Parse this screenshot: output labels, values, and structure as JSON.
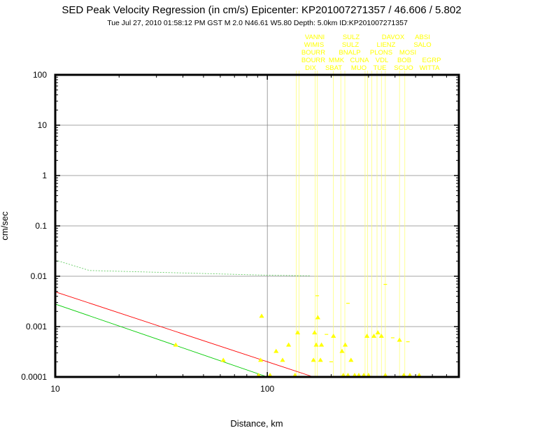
{
  "chart_data": {
    "type": "scatter",
    "title": "SED Peak Velocity Regression (in cm/s) Epicenter: KP201007271357 / 46.606 / 5.802",
    "subtitle": "Tue Jul 27, 2010 01:58:12 PM GST   M 2.0   N46.61 W5.80   Depth: 5.0km   ID:KP201007271357",
    "xlabel": "Distance, km",
    "ylabel": "cm/sec",
    "x_scale": "log",
    "y_scale": "log",
    "xlim": [
      10,
      800
    ],
    "ylim": [
      0.0001,
      100
    ],
    "grid": true,
    "x_ticks": [
      {
        "value": 10,
        "label": "10"
      },
      {
        "value": 100,
        "label": "100"
      }
    ],
    "y_ticks": [
      {
        "value": 100,
        "label": "100"
      },
      {
        "value": 10,
        "label": "10"
      },
      {
        "value": 1,
        "label": "1"
      },
      {
        "value": 0.1,
        "label": "0.1"
      },
      {
        "value": 0.01,
        "label": "0.01"
      },
      {
        "value": 0.001,
        "label": "0.001"
      },
      {
        "value": 0.0001,
        "label": "0.0001"
      }
    ],
    "colors": {
      "points": "#ffff00",
      "red_line": "#ff0000",
      "green_line": "#00cc00",
      "dotted_line": "#66cc66",
      "grid": "#888888"
    },
    "regression_lines": [
      {
        "color": "#ff0000",
        "style": "solid",
        "points": [
          [
            10,
            0.0049
          ],
          [
            165,
            0.0001
          ]
        ]
      },
      {
        "color": "#00cc00",
        "style": "solid",
        "points": [
          [
            10,
            0.0028
          ],
          [
            100,
            0.0001
          ]
        ]
      },
      {
        "color": "#66cc66",
        "style": "dotted",
        "points": [
          [
            10,
            0.021
          ],
          [
            14.5,
            0.013
          ],
          [
            30,
            0.012
          ],
          [
            100,
            0.0105
          ],
          [
            160,
            0.0102
          ]
        ]
      }
    ],
    "points": [
      {
        "x": 37,
        "y": 0.0004
      },
      {
        "x": 62,
        "y": 0.0002
      },
      {
        "x": 91,
        "y": 0.0001
      },
      {
        "x": 93,
        "y": 0.0002
      },
      {
        "x": 94,
        "y": 0.0015
      },
      {
        "x": 103,
        "y": 0.0001
      },
      {
        "x": 110,
        "y": 0.0003
      },
      {
        "x": 118,
        "y": 0.0002
      },
      {
        "x": 126,
        "y": 0.0004
      },
      {
        "x": 135,
        "y": 0.0001
      },
      {
        "x": 139,
        "y": 0.0007
      },
      {
        "x": 165,
        "y": 0.0002
      },
      {
        "x": 167,
        "y": 0.0007
      },
      {
        "x": 170,
        "y": 0.0004
      },
      {
        "x": 173,
        "y": 0.0014
      },
      {
        "x": 178,
        "y": 0.0002
      },
      {
        "x": 180,
        "y": 0.0004
      },
      {
        "x": 205,
        "y": 0.0006
      },
      {
        "x": 225,
        "y": 0.0003
      },
      {
        "x": 228,
        "y": 0.0001
      },
      {
        "x": 233,
        "y": 0.0004
      },
      {
        "x": 240,
        "y": 0.0001
      },
      {
        "x": 248,
        "y": 0.0002
      },
      {
        "x": 258,
        "y": 0.0001
      },
      {
        "x": 270,
        "y": 0.0001
      },
      {
        "x": 285,
        "y": 0.0001
      },
      {
        "x": 295,
        "y": 0.0006
      },
      {
        "x": 300,
        "y": 0.0001
      },
      {
        "x": 318,
        "y": 0.0006
      },
      {
        "x": 332,
        "y": 0.0007
      },
      {
        "x": 345,
        "y": 0.0006
      },
      {
        "x": 360,
        "y": 0.0001
      },
      {
        "x": 420,
        "y": 0.0005
      },
      {
        "x": 440,
        "y": 0.0001
      },
      {
        "x": 470,
        "y": 0.0001
      },
      {
        "x": 520,
        "y": 0.0001
      }
    ],
    "minor_marks": [
      {
        "x": 172,
        "y": 0.0041
      },
      {
        "x": 240,
        "y": 0.0029
      },
      {
        "x": 360,
        "y": 0.0069
      },
      {
        "x": 190,
        "y": 0.0007
      },
      {
        "x": 390,
        "y": 0.0006
      },
      {
        "x": 460,
        "y": 0.0005
      },
      {
        "x": 200,
        "y": 0.0002
      },
      {
        "x": 520,
        "y": 0.0001
      }
    ],
    "station_lines_x": [
      137,
      141,
      168,
      172,
      205,
      222,
      232,
      289,
      297,
      311,
      329,
      345,
      360,
      420,
      445
    ],
    "station_labels": [
      {
        "text": "VANNI",
        "x": 450,
        "row": 0
      },
      {
        "text": "SULZ",
        "x": 502,
        "row": 0
      },
      {
        "text": "DAVOX",
        "x": 562,
        "row": 0
      },
      {
        "text": "ABSI",
        "x": 604,
        "row": 0
      },
      {
        "text": "WIMIS",
        "x": 449,
        "row": 1
      },
      {
        "text": "SULZ",
        "x": 501,
        "row": 1
      },
      {
        "text": "LIENZ",
        "x": 552,
        "row": 1
      },
      {
        "text": "SALO",
        "x": 604,
        "row": 1
      },
      {
        "text": "BOURR",
        "x": 448,
        "row": 2
      },
      {
        "text": "BNALP",
        "x": 500,
        "row": 2
      },
      {
        "text": "PLONS",
        "x": 545,
        "row": 2
      },
      {
        "text": "MOSI",
        "x": 583,
        "row": 2
      },
      {
        "text": "BOURR",
        "x": 448,
        "row": 3
      },
      {
        "text": "MMK",
        "x": 481,
        "row": 3
      },
      {
        "text": "CUNA",
        "x": 514,
        "row": 3
      },
      {
        "text": "VDL",
        "x": 546,
        "row": 3
      },
      {
        "text": "BOB",
        "x": 578,
        "row": 3
      },
      {
        "text": "EGRP",
        "x": 617,
        "row": 3
      },
      {
        "text": "DIX",
        "x": 444,
        "row": 4
      },
      {
        "text": "SBAT",
        "x": 477,
        "row": 4
      },
      {
        "text": "MUO",
        "x": 513,
        "row": 4
      },
      {
        "text": "TUE",
        "x": 543,
        "row": 4
      },
      {
        "text": "SCUO",
        "x": 577,
        "row": 4
      },
      {
        "text": "WITTA",
        "x": 614,
        "row": 4
      }
    ]
  }
}
